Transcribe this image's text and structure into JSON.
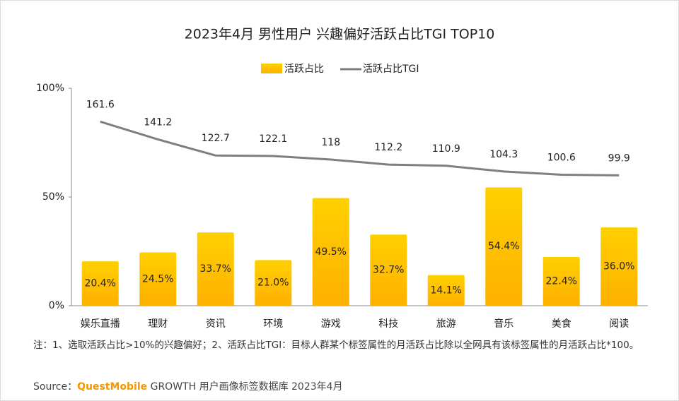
{
  "chart_data": {
    "type": "bar_line",
    "title": "2023年4月 男性用户 兴趣偏好活跃占比TGI TOP10",
    "categories": [
      "娱乐直播",
      "理财",
      "资讯",
      "环境",
      "游戏",
      "科技",
      "旅游",
      "音乐",
      "美食",
      "阅读"
    ],
    "series": [
      {
        "name": "活跃占比",
        "type": "bar",
        "color": "#FFB800",
        "values": [
          20.4,
          24.5,
          33.7,
          21.0,
          49.5,
          32.7,
          14.1,
          54.4,
          22.4,
          36.0
        ],
        "value_labels": [
          "20.4%",
          "24.5%",
          "33.7%",
          "21.0%",
          "49.5%",
          "32.7%",
          "14.1%",
          "54.4%",
          "22.4%",
          "36.0%"
        ]
      },
      {
        "name": "活跃占比TGI",
        "type": "line",
        "axis": "y2",
        "color": "#7F7F7F",
        "values": [
          161.6,
          141.2,
          122.7,
          122.1,
          118.0,
          112.2,
          110.9,
          104.3,
          100.6,
          99.9
        ]
      }
    ],
    "ylim": [
      0,
      100
    ],
    "yticks": [
      {
        "value": 0,
        "label": "0%"
      },
      {
        "value": 50,
        "label": "50%"
      },
      {
        "value": 100,
        "label": "100%"
      }
    ],
    "y2lim": [
      -50,
      200
    ],
    "legend": "top",
    "note": "注：1、选取活跃占比>10%的兴趣偏好；2、活跃占比TGI：目标人群某个标签属性的月活跃占比除以全网具有该标签属性的月活跃占比*100。",
    "source_label": "Source：",
    "source_brand": "QuestMobile",
    "source_text": "GROWTH 用户画像标签数据库 2023年4月"
  }
}
